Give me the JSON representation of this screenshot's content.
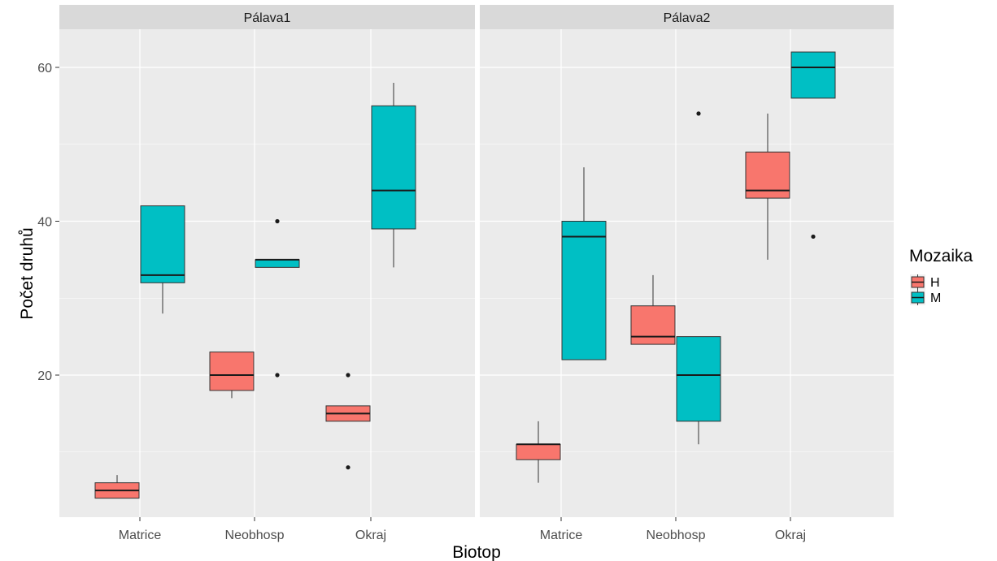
{
  "chart_data": {
    "type": "boxplot",
    "facets": [
      "Pálava1",
      "Pálava2"
    ],
    "categories": [
      "Matrice",
      "Neobhosp",
      "Okraj"
    ],
    "xlabel": "Biotop",
    "ylabel": "Počet druhů",
    "ylim": [
      0,
      65
    ],
    "yticks": [
      20,
      40,
      60
    ],
    "grid": true,
    "legend": {
      "title": "Mozaika",
      "position": "right",
      "entries": [
        {
          "label": "H",
          "color": "#F8766D"
        },
        {
          "label": "M",
          "color": "#00BFC4"
        }
      ]
    },
    "series": [
      {
        "facet": "Pálava1",
        "boxes": [
          {
            "category": "Matrice",
            "group": "H",
            "lower_whisker": 4,
            "q1": 4,
            "median": 5,
            "q3": 6,
            "upper_whisker": 7,
            "outliers": []
          },
          {
            "category": "Matrice",
            "group": "M",
            "lower_whisker": 28,
            "q1": 32,
            "median": 33,
            "q3": 42,
            "upper_whisker": 42,
            "outliers": []
          },
          {
            "category": "Neobhosp",
            "group": "H",
            "lower_whisker": 17,
            "q1": 18,
            "median": 20,
            "q3": 23,
            "upper_whisker": 23,
            "outliers": []
          },
          {
            "category": "Neobhosp",
            "group": "M",
            "lower_whisker": 34,
            "q1": 34,
            "median": 35,
            "q3": 35,
            "upper_whisker": 35,
            "outliers": [
              40,
              20
            ]
          },
          {
            "category": "Okraj",
            "group": "H",
            "lower_whisker": 14,
            "q1": 14,
            "median": 15,
            "q3": 16,
            "upper_whisker": 16,
            "outliers": [
              20,
              8
            ]
          },
          {
            "category": "Okraj",
            "group": "M",
            "lower_whisker": 34,
            "q1": 39,
            "median": 44,
            "q3": 55,
            "upper_whisker": 58,
            "outliers": []
          }
        ]
      },
      {
        "facet": "Pálava2",
        "boxes": [
          {
            "category": "Matrice",
            "group": "H",
            "lower_whisker": 6,
            "q1": 9,
            "median": 11,
            "q3": 11,
            "upper_whisker": 14,
            "outliers": []
          },
          {
            "category": "Matrice",
            "group": "M",
            "lower_whisker": 22,
            "q1": 22,
            "median": 38,
            "q3": 40,
            "upper_whisker": 47,
            "outliers": []
          },
          {
            "category": "Neobhosp",
            "group": "H",
            "lower_whisker": 24,
            "q1": 24,
            "median": 25,
            "q3": 29,
            "upper_whisker": 33,
            "outliers": []
          },
          {
            "category": "Neobhosp",
            "group": "M",
            "lower_whisker": 11,
            "q1": 14,
            "median": 20,
            "q3": 25,
            "upper_whisker": 25,
            "outliers": [
              54
            ]
          },
          {
            "category": "Okraj",
            "group": "H",
            "lower_whisker": 35,
            "q1": 43,
            "median": 44,
            "q3": 49,
            "upper_whisker": 54,
            "outliers": []
          },
          {
            "category": "Okraj",
            "group": "M",
            "lower_whisker": 56,
            "q1": 56,
            "median": 60,
            "q3": 62,
            "upper_whisker": 62,
            "outliers": [
              38
            ]
          }
        ]
      }
    ]
  }
}
